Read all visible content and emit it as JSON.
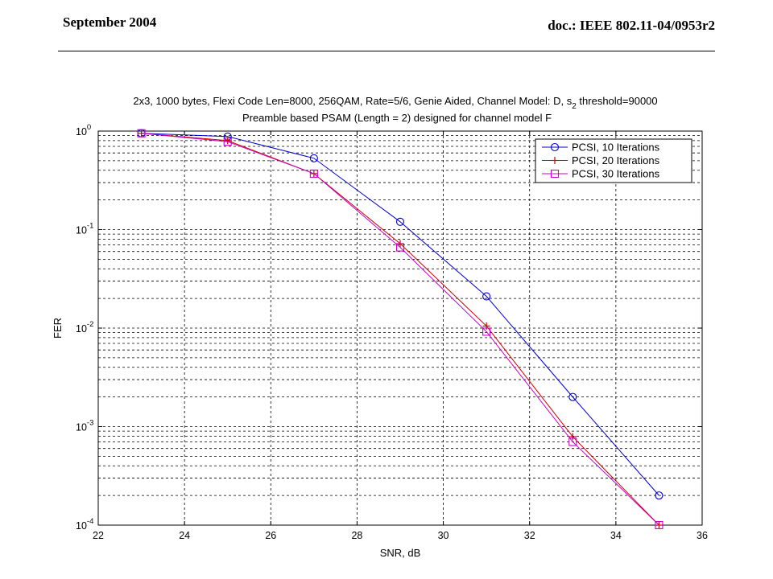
{
  "slide": {
    "date": "September 2004",
    "doc": "doc.: IEEE 802.11-04/0953r2"
  },
  "chart_data": {
    "type": "line",
    "title_line1": "2x3, 1000 bytes, Flexi Code Len=8000, 256QAM, Rate=5/6, Genie Aided, Channel Model: D, s",
    "title_sub": "2",
    "title_line1_tail": " threshold=90000",
    "title_line2": "Preamble based PSAM (Length = 2) designed for channel model F",
    "xlabel": "SNR, dB",
    "ylabel": "FER",
    "xlim": [
      22,
      36
    ],
    "ylim": [
      0.0001,
      1
    ],
    "yscale": "log",
    "grid": true,
    "legend_position": "top-right",
    "x_ticks": [
      "22",
      "24",
      "26",
      "28",
      "30",
      "32",
      "34",
      "36"
    ],
    "y_ticks": [
      {
        "base": "10",
        "exp": "0"
      },
      {
        "base": "10",
        "exp": "-1"
      },
      {
        "base": "10",
        "exp": "-2"
      },
      {
        "base": "10",
        "exp": "-3"
      },
      {
        "base": "10",
        "exp": "-4"
      }
    ],
    "series": [
      {
        "name": "PCSI, 10 Iterations",
        "color": "#0000cc",
        "marker": "circle",
        "x": [
          23,
          25,
          27,
          29,
          31,
          33,
          35
        ],
        "y": [
          0.95,
          0.88,
          0.53,
          0.12,
          0.021,
          0.002,
          0.0002
        ]
      },
      {
        "name": "PCSI, 20 Iterations",
        "color": "#cc0000",
        "marker": "plus",
        "x": [
          23,
          25,
          27,
          29,
          31,
          33,
          35
        ],
        "y": [
          0.95,
          0.8,
          0.37,
          0.072,
          0.0105,
          0.00079,
          0.0001
        ]
      },
      {
        "name": "PCSI, 30 Iterations",
        "color": "#cc00cc",
        "marker": "square",
        "x": [
          23,
          25,
          27,
          29,
          31,
          33,
          35
        ],
        "y": [
          0.95,
          0.78,
          0.37,
          0.066,
          0.0092,
          0.0007,
          0.0001
        ]
      }
    ]
  }
}
